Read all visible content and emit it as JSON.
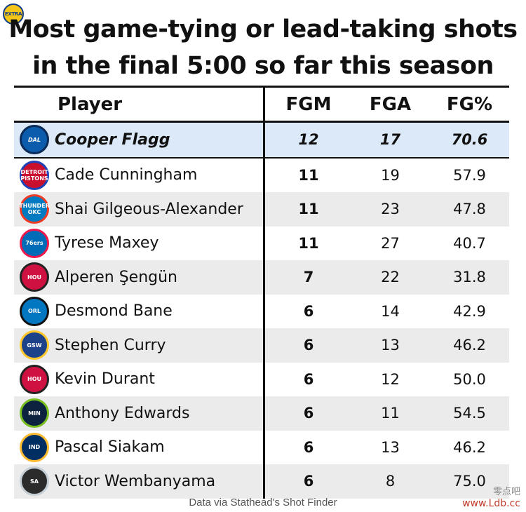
{
  "badge": "EXTRA",
  "title_lines": [
    "Most game-tying or lead-taking shots",
    "in the final 5:00 so far this season"
  ],
  "headers": {
    "player": "Player",
    "fgm": "FGM",
    "fga": "FGA",
    "fgpct": "FG%"
  },
  "rows": [
    {
      "player": "Cooper Flagg",
      "fgm": "12",
      "fga": "17",
      "fgpct": "70.6",
      "logo": "mavericks-logo",
      "logo_text": "DAL",
      "logo_bg": "#0b5cad",
      "logo_ring": "#0b2a55",
      "highlight": true
    },
    {
      "player": "Cade Cunningham",
      "fgm": "11",
      "fga": "19",
      "fgpct": "57.9",
      "logo": "pistons-logo",
      "logo_text": "DETROIT PISTONS",
      "logo_bg": "#c8102e",
      "logo_ring": "#1d42ba"
    },
    {
      "player": "Shai Gilgeous-Alexander",
      "fgm": "11",
      "fga": "23",
      "fgpct": "47.8",
      "logo": "thunder-logo",
      "logo_text": "THUNDER OKC",
      "logo_bg": "#007ac1",
      "logo_ring": "#ef3b24"
    },
    {
      "player": "Tyrese Maxey",
      "fgm": "11",
      "fga": "27",
      "fgpct": "40.7",
      "logo": "76ers-logo",
      "logo_text": "76ers",
      "logo_bg": "#006bb6",
      "logo_ring": "#ed174c"
    },
    {
      "player": "Alperen Şengün",
      "fgm": "7",
      "fga": "22",
      "fgpct": "31.8",
      "logo": "rockets-logo",
      "logo_text": "HOU",
      "logo_bg": "#ce1141",
      "logo_ring": "#222222"
    },
    {
      "player": "Desmond Bane",
      "fgm": "6",
      "fga": "14",
      "fgpct": "42.9",
      "logo": "magic-logo",
      "logo_text": "ORL",
      "logo_bg": "#0077c0",
      "logo_ring": "#111111"
    },
    {
      "player": "Stephen Curry",
      "fgm": "6",
      "fga": "13",
      "fgpct": "46.2",
      "logo": "warriors-logo",
      "logo_text": "GSW",
      "logo_bg": "#1d428a",
      "logo_ring": "#ffc72c"
    },
    {
      "player": " Kevin Durant",
      "fgm": "6",
      "fga": "12",
      "fgpct": "50.0",
      "logo": "rockets-logo",
      "logo_text": "HOU",
      "logo_bg": "#ce1141",
      "logo_ring": "#222222"
    },
    {
      "player": "Anthony Edwards",
      "fgm": "6",
      "fga": "11",
      "fgpct": "54.5",
      "logo": "timberwolves-logo",
      "logo_text": "MIN",
      "logo_bg": "#0c2340",
      "logo_ring": "#78be20"
    },
    {
      "player": "Pascal Siakam",
      "fgm": "6",
      "fga": "13",
      "fgpct": "46.2",
      "logo": "pacers-logo",
      "logo_text": "IND",
      "logo_bg": "#002d62",
      "logo_ring": "#fdbb30"
    },
    {
      "player": "Victor Wembanyama",
      "fgm": "6",
      "fga": "8",
      "fgpct": "75.0",
      "logo": "spurs-logo",
      "logo_text": "SA",
      "logo_bg": "#2b2b2b",
      "logo_ring": "#c4ced4"
    }
  ],
  "footer": "Data via Stathead's Shot Finder",
  "watermark": {
    "cn": "零点吧",
    "url": "www.Ldb.cc"
  },
  "colors": {
    "highlight_row": "#dbe9f8",
    "alt_row": "#ebebeb",
    "rule": "#111111"
  },
  "chart_data": {
    "type": "table",
    "title": "Most game-tying or lead-taking shots in the final 5:00 so far this season",
    "columns": [
      "Player",
      "FGM",
      "FGA",
      "FG%"
    ],
    "rows": [
      [
        "Cooper Flagg",
        12,
        17,
        70.6
      ],
      [
        "Cade Cunningham",
        11,
        19,
        57.9
      ],
      [
        "Shai Gilgeous-Alexander",
        11,
        23,
        47.8
      ],
      [
        "Tyrese Maxey",
        11,
        27,
        40.7
      ],
      [
        "Alperen Şengün",
        7,
        22,
        31.8
      ],
      [
        "Desmond Bane",
        6,
        14,
        42.9
      ],
      [
        "Stephen Curry",
        6,
        13,
        46.2
      ],
      [
        "Kevin Durant",
        6,
        12,
        50.0
      ],
      [
        "Anthony Edwards",
        6,
        11,
        54.5
      ],
      [
        "Pascal Siakam",
        6,
        13,
        46.2
      ],
      [
        "Victor Wembanyama",
        6,
        8,
        75.0
      ]
    ],
    "source": "Data via Stathead's Shot Finder"
  }
}
